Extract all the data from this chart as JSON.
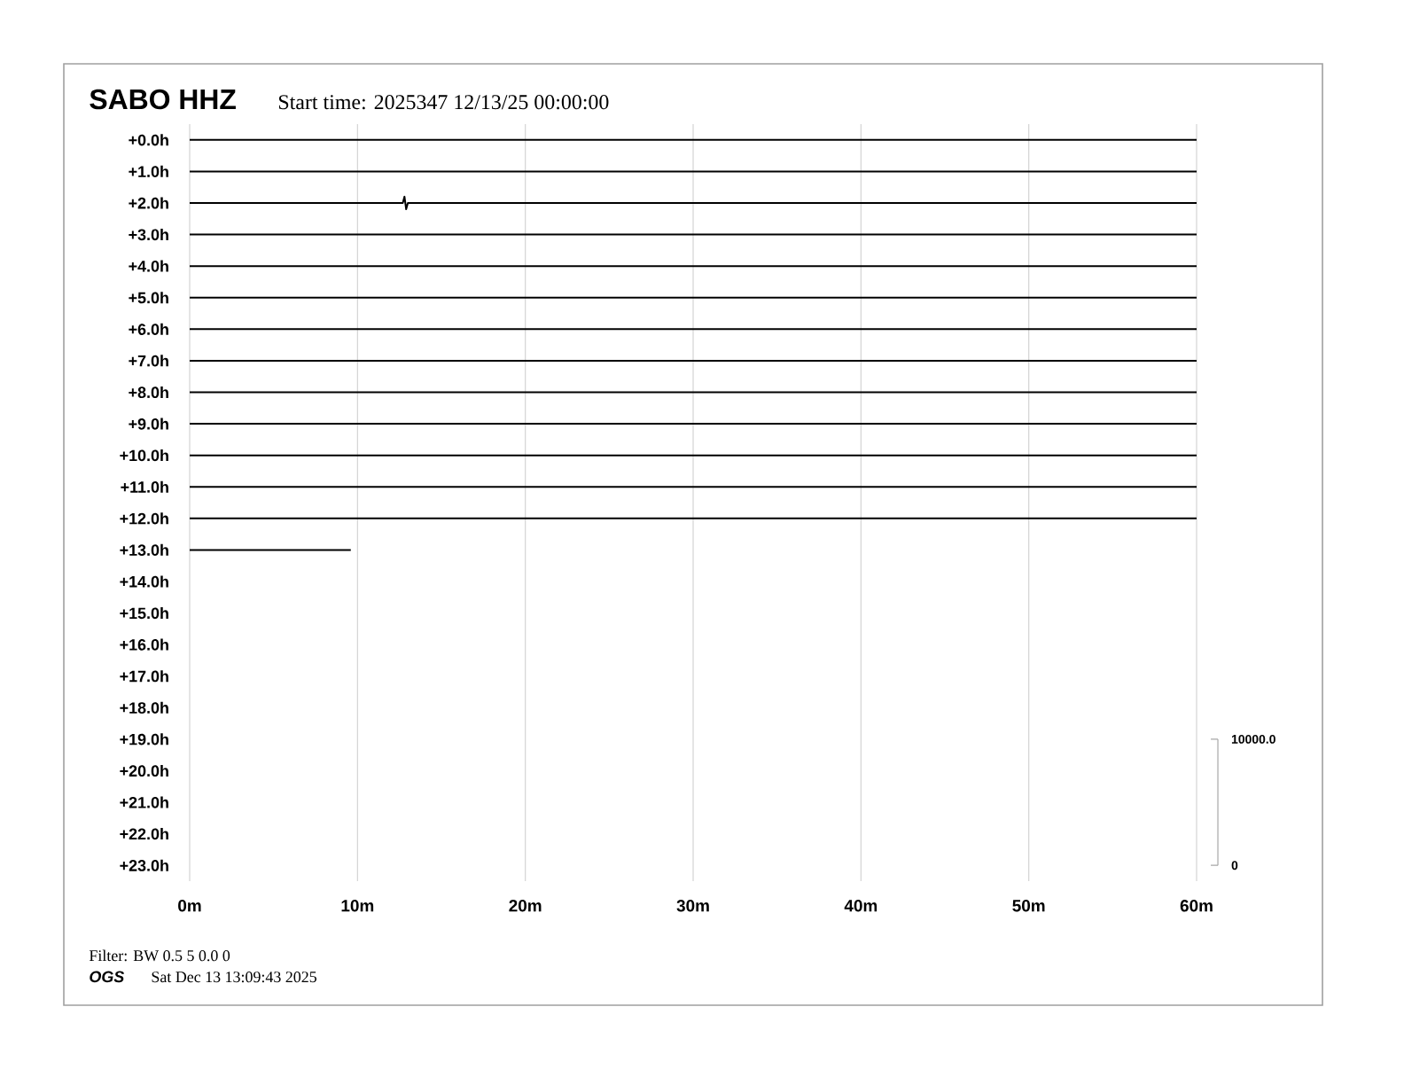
{
  "chart_data": {
    "type": "line",
    "title": "SABO HHZ",
    "subtitle": "Start time: 2025347 12/13/25 00:00:00",
    "annotations": [
      "Filter: BW 0.5 5 0.0 0",
      "OGS",
      "Sat Dec 13 13:09:43 2025"
    ],
    "xlim": [
      0,
      60
    ],
    "xticks": [
      {
        "value": 0,
        "label": "0m"
      },
      {
        "value": 10,
        "label": "10m"
      },
      {
        "value": 20,
        "label": "20m"
      },
      {
        "value": 30,
        "label": "30m"
      },
      {
        "value": 40,
        "label": "40m"
      },
      {
        "value": 50,
        "label": "50m"
      },
      {
        "value": 60,
        "label": "60m"
      }
    ],
    "ylim": [
      23.5,
      -0.5
    ],
    "yticks": [
      {
        "value": 0,
        "label": "+0.0h"
      },
      {
        "value": 1,
        "label": "+1.0h"
      },
      {
        "value": 2,
        "label": "+2.0h"
      },
      {
        "value": 3,
        "label": "+3.0h"
      },
      {
        "value": 4,
        "label": "+4.0h"
      },
      {
        "value": 5,
        "label": "+5.0h"
      },
      {
        "value": 6,
        "label": "+6.0h"
      },
      {
        "value": 7,
        "label": "+7.0h"
      },
      {
        "value": 8,
        "label": "+8.0h"
      },
      {
        "value": 9,
        "label": "+9.0h"
      },
      {
        "value": 10,
        "label": "+10.0h"
      },
      {
        "value": 11,
        "label": "+11.0h"
      },
      {
        "value": 12,
        "label": "+12.0h"
      },
      {
        "value": 13,
        "label": "+13.0h"
      },
      {
        "value": 14,
        "label": "+14.0h"
      },
      {
        "value": 15,
        "label": "+15.0h"
      },
      {
        "value": 16,
        "label": "+16.0h"
      },
      {
        "value": 17,
        "label": "+17.0h"
      },
      {
        "value": 18,
        "label": "+18.0h"
      },
      {
        "value": 19,
        "label": "+19.0h"
      },
      {
        "value": 20,
        "label": "+20.0h"
      },
      {
        "value": 21,
        "label": "+21.0h"
      },
      {
        "value": 22,
        "label": "+22.0h"
      },
      {
        "value": 23,
        "label": "+23.0h"
      }
    ],
    "y2lim": [
      -1250,
      58750
    ],
    "y2ticks": [
      0,
      {
        "value": 10000,
        "label": "10000.0"
      }
    ],
    "grid": "x",
    "series": [
      {
        "color": "#000000",
        "x": [
          0,
          60
        ],
        "values": [
          0,
          0
        ]
      },
      {
        "color": "#000000",
        "x": [
          0,
          60
        ],
        "values": [
          1,
          1
        ]
      },
      {
        "color": "#000000",
        "x": [
          0,
          12.7,
          12.8,
          12.9,
          13.0,
          60
        ],
        "values": [
          2,
          2,
          1.8,
          2.2,
          2,
          2
        ]
      },
      {
        "color": "#000000",
        "x": [
          0,
          60
        ],
        "values": [
          3,
          3
        ]
      },
      {
        "color": "#000000",
        "x": [
          0,
          60
        ],
        "values": [
          4,
          4
        ]
      },
      {
        "color": "#000000",
        "x": [
          0,
          60
        ],
        "values": [
          5,
          5
        ]
      },
      {
        "color": "#000000",
        "x": [
          0,
          60
        ],
        "values": [
          6,
          6
        ]
      },
      {
        "color": "#000000",
        "x": [
          0,
          60
        ],
        "values": [
          7,
          7
        ]
      },
      {
        "color": "#000000",
        "x": [
          0,
          60
        ],
        "values": [
          8,
          8
        ]
      },
      {
        "color": "#000000",
        "x": [
          0,
          60
        ],
        "values": [
          9,
          9
        ]
      },
      {
        "color": "#000000",
        "x": [
          0,
          60
        ],
        "values": [
          10,
          10
        ]
      },
      {
        "color": "#000000",
        "x": [
          0,
          60
        ],
        "values": [
          11,
          11
        ]
      },
      {
        "color": "#000000",
        "x": [
          0,
          60
        ],
        "values": [
          12,
          12
        ]
      },
      {
        "color": "#000000",
        "x": [
          0,
          9.6
        ],
        "values": [
          13,
          13
        ]
      }
    ]
  }
}
